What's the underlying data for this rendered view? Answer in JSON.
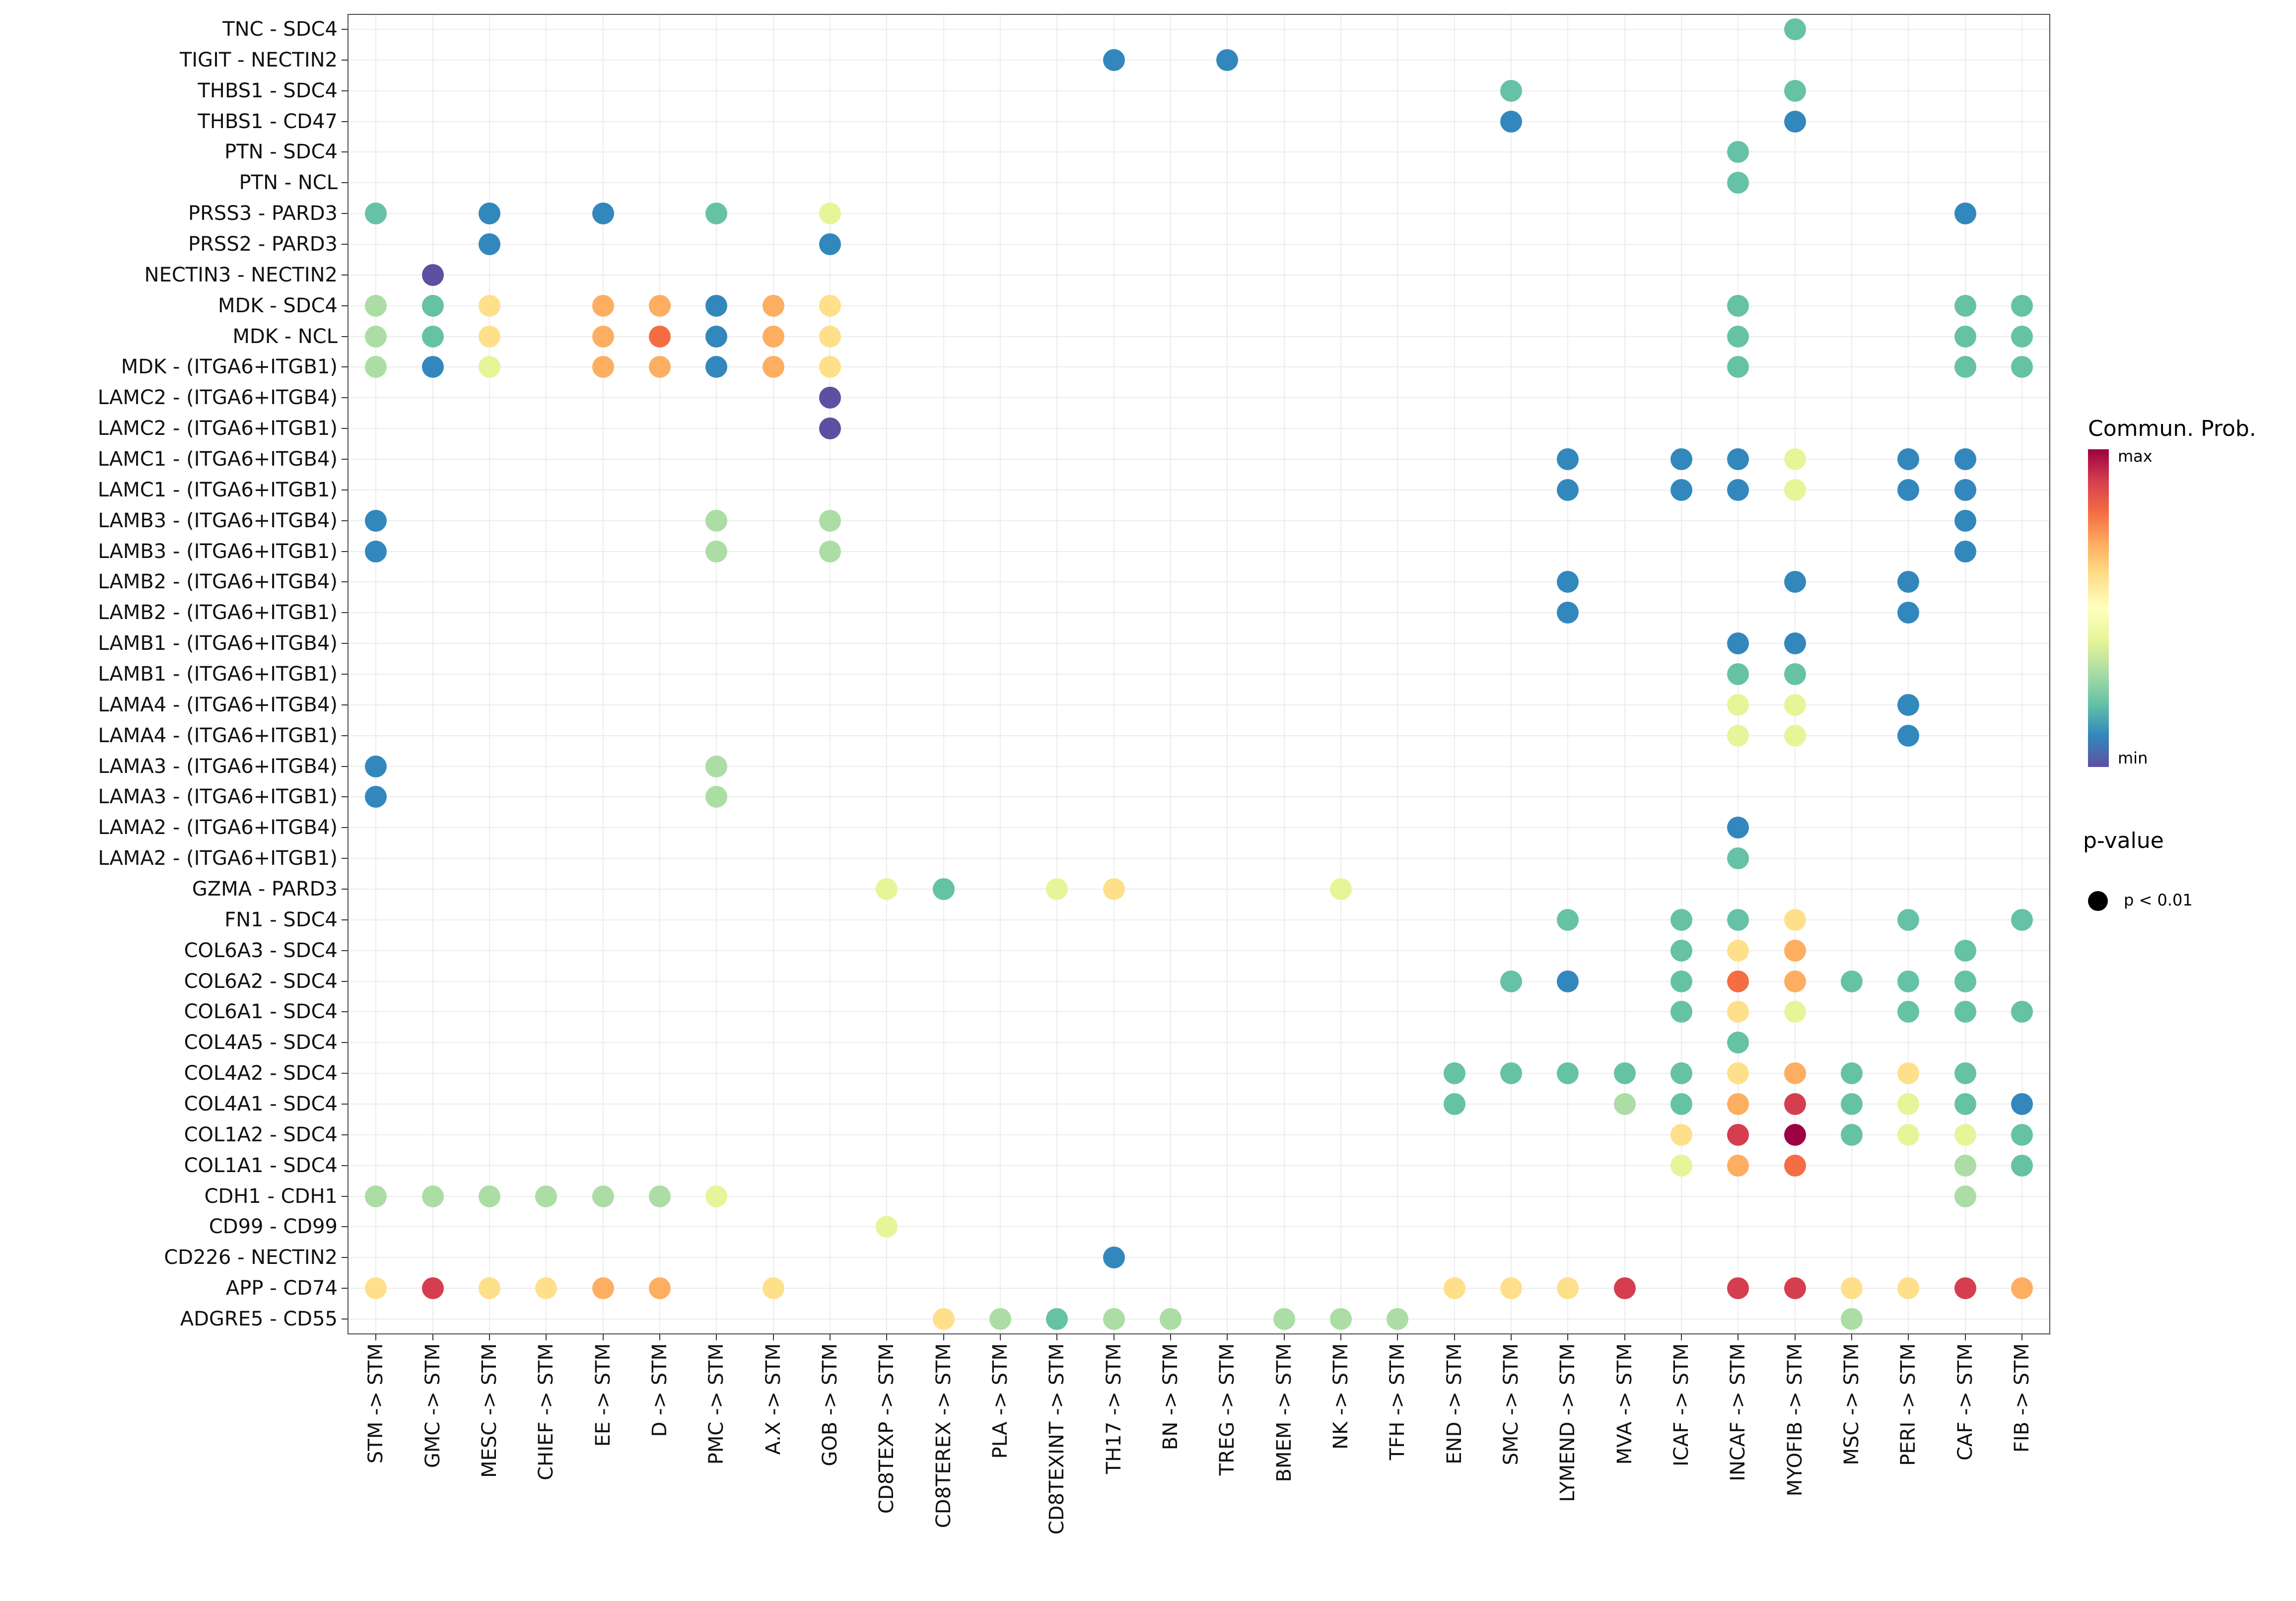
{
  "chart_data": {
    "type": "scatter",
    "subtype": "ligand-receptor-bubble-plot",
    "title": "",
    "x_axis": {
      "labels": [
        "STM -> STM",
        "GMC -> STM",
        "MESC -> STM",
        "CHIEF -> STM",
        "EE -> STM",
        "D -> STM",
        "PMC -> STM",
        "A.X -> STM",
        "GOB -> STM",
        "CD8TEXP -> STM",
        "CD8TEREX -> STM",
        "PLA -> STM",
        "CD8TEXINT -> STM",
        "TH17 -> STM",
        "BN -> STM",
        "TREG -> STM",
        "BMEM -> STM",
        "NK -> STM",
        "TFH -> STM",
        "END -> STM",
        "SMC -> STM",
        "LYMEND -> STM",
        "MVA -> STM",
        "ICAF -> STM",
        "INCAF -> STM",
        "MYOFIB -> STM",
        "MSC -> STM",
        "PERI -> STM",
        "CAF -> STM",
        "FIB -> STM"
      ]
    },
    "y_axis": {
      "labels": [
        "TNC - SDC4",
        "TIGIT - NECTIN2",
        "THBS1 - SDC4",
        "THBS1 - CD47",
        "PTN - SDC4",
        "PTN - NCL",
        "PRSS3 - PARD3",
        "PRSS2 - PARD3",
        "NECTIN3 - NECTIN2",
        "MDK - SDC4",
        "MDK - NCL",
        "MDK - (ITGA6+ITGB1)",
        "LAMC2 - (ITGA6+ITGB4)",
        "LAMC2 - (ITGA6+ITGB1)",
        "LAMC1 - (ITGA6+ITGB4)",
        "LAMC1 - (ITGA6+ITGB1)",
        "LAMB3 - (ITGA6+ITGB4)",
        "LAMB3 - (ITGA6+ITGB1)",
        "LAMB2 - (ITGA6+ITGB4)",
        "LAMB2 - (ITGA6+ITGB1)",
        "LAMB1 - (ITGA6+ITGB4)",
        "LAMB1 - (ITGA6+ITGB1)",
        "LAMA4 - (ITGA6+ITGB4)",
        "LAMA4 - (ITGA6+ITGB1)",
        "LAMA3 - (ITGA6+ITGB4)",
        "LAMA3 - (ITGA6+ITGB1)",
        "LAMA2 - (ITGA6+ITGB4)",
        "LAMA2 - (ITGA6+ITGB1)",
        "GZMA - PARD3",
        "FN1 - SDC4",
        "COL6A3 - SDC4",
        "COL6A2 - SDC4",
        "COL6A1 - SDC4",
        "COL4A5 - SDC4",
        "COL4A2 - SDC4",
        "COL4A1 - SDC4",
        "COL1A2 - SDC4",
        "COL1A1 - SDC4",
        "CDH1 - CDH1",
        "CD99 - CD99",
        "CD226 - NECTIN2",
        "APP - CD74",
        "ADGRE5 - CD55"
      ]
    },
    "color_scale": {
      "name": "Commun. Prob.",
      "max_label": "max",
      "min_label": "min",
      "stops": [
        "#9e0142",
        "#d53e4f",
        "#f46d43",
        "#fdae61",
        "#fee08b",
        "#ffffbf",
        "#e6f598",
        "#abdda4",
        "#66c2a5",
        "#3288bd",
        "#5e4fa2"
      ]
    },
    "p_value_legend": {
      "title": "p-value",
      "label": "p < 0.01"
    },
    "palette": {
      "P": "#5e4fa2",
      "B": "#3288bd",
      "T": "#66c2a5",
      "G": "#abdda4",
      "YG": "#e6f598",
      "Y": "#fee08b",
      "O": "#fdae61",
      "OR": "#f46d43",
      "R": "#d53e4f",
      "DR": "#9e0142"
    },
    "palette_order_low_to_high": [
      "P",
      "B",
      "T",
      "G",
      "YG",
      "Y",
      "O",
      "OR",
      "R",
      "DR"
    ],
    "dots": [
      {
        "r": 0,
        "c": 25,
        "v": "T"
      },
      {
        "r": 1,
        "c": 13,
        "v": "B"
      },
      {
        "r": 1,
        "c": 15,
        "v": "B"
      },
      {
        "r": 2,
        "c": 20,
        "v": "T"
      },
      {
        "r": 2,
        "c": 25,
        "v": "T"
      },
      {
        "r": 3,
        "c": 20,
        "v": "B"
      },
      {
        "r": 3,
        "c": 25,
        "v": "B"
      },
      {
        "r": 4,
        "c": 24,
        "v": "T"
      },
      {
        "r": 5,
        "c": 24,
        "v": "T"
      },
      {
        "r": 6,
        "c": 0,
        "v": "T"
      },
      {
        "r": 6,
        "c": 2,
        "v": "B"
      },
      {
        "r": 6,
        "c": 4,
        "v": "B"
      },
      {
        "r": 6,
        "c": 6,
        "v": "T"
      },
      {
        "r": 6,
        "c": 8,
        "v": "YG"
      },
      {
        "r": 6,
        "c": 28,
        "v": "B"
      },
      {
        "r": 7,
        "c": 2,
        "v": "B"
      },
      {
        "r": 7,
        "c": 8,
        "v": "B"
      },
      {
        "r": 8,
        "c": 1,
        "v": "P"
      },
      {
        "r": 9,
        "c": 0,
        "v": "G"
      },
      {
        "r": 9,
        "c": 1,
        "v": "T"
      },
      {
        "r": 9,
        "c": 2,
        "v": "Y"
      },
      {
        "r": 9,
        "c": 4,
        "v": "O"
      },
      {
        "r": 9,
        "c": 5,
        "v": "O"
      },
      {
        "r": 9,
        "c": 6,
        "v": "B"
      },
      {
        "r": 9,
        "c": 7,
        "v": "O"
      },
      {
        "r": 9,
        "c": 8,
        "v": "Y"
      },
      {
        "r": 9,
        "c": 24,
        "v": "T"
      },
      {
        "r": 9,
        "c": 28,
        "v": "T"
      },
      {
        "r": 9,
        "c": 29,
        "v": "T"
      },
      {
        "r": 10,
        "c": 0,
        "v": "G"
      },
      {
        "r": 10,
        "c": 1,
        "v": "T"
      },
      {
        "r": 10,
        "c": 2,
        "v": "Y"
      },
      {
        "r": 10,
        "c": 4,
        "v": "O"
      },
      {
        "r": 10,
        "c": 5,
        "v": "OR"
      },
      {
        "r": 10,
        "c": 6,
        "v": "B"
      },
      {
        "r": 10,
        "c": 7,
        "v": "O"
      },
      {
        "r": 10,
        "c": 8,
        "v": "Y"
      },
      {
        "r": 10,
        "c": 24,
        "v": "T"
      },
      {
        "r": 10,
        "c": 28,
        "v": "T"
      },
      {
        "r": 10,
        "c": 29,
        "v": "T"
      },
      {
        "r": 11,
        "c": 0,
        "v": "G"
      },
      {
        "r": 11,
        "c": 1,
        "v": "B"
      },
      {
        "r": 11,
        "c": 2,
        "v": "YG"
      },
      {
        "r": 11,
        "c": 4,
        "v": "O"
      },
      {
        "r": 11,
        "c": 5,
        "v": "O"
      },
      {
        "r": 11,
        "c": 6,
        "v": "B"
      },
      {
        "r": 11,
        "c": 7,
        "v": "O"
      },
      {
        "r": 11,
        "c": 8,
        "v": "Y"
      },
      {
        "r": 11,
        "c": 24,
        "v": "T"
      },
      {
        "r": 11,
        "c": 28,
        "v": "T"
      },
      {
        "r": 11,
        "c": 29,
        "v": "T"
      },
      {
        "r": 12,
        "c": 8,
        "v": "P"
      },
      {
        "r": 13,
        "c": 8,
        "v": "P"
      },
      {
        "r": 14,
        "c": 21,
        "v": "B"
      },
      {
        "r": 14,
        "c": 23,
        "v": "B"
      },
      {
        "r": 14,
        "c": 24,
        "v": "B"
      },
      {
        "r": 14,
        "c": 25,
        "v": "YG"
      },
      {
        "r": 14,
        "c": 27,
        "v": "B"
      },
      {
        "r": 14,
        "c": 28,
        "v": "B"
      },
      {
        "r": 15,
        "c": 21,
        "v": "B"
      },
      {
        "r": 15,
        "c": 23,
        "v": "B"
      },
      {
        "r": 15,
        "c": 24,
        "v": "B"
      },
      {
        "r": 15,
        "c": 25,
        "v": "YG"
      },
      {
        "r": 15,
        "c": 27,
        "v": "B"
      },
      {
        "r": 15,
        "c": 28,
        "v": "B"
      },
      {
        "r": 16,
        "c": 0,
        "v": "B"
      },
      {
        "r": 16,
        "c": 6,
        "v": "G"
      },
      {
        "r": 16,
        "c": 8,
        "v": "G"
      },
      {
        "r": 16,
        "c": 28,
        "v": "B"
      },
      {
        "r": 17,
        "c": 0,
        "v": "B"
      },
      {
        "r": 17,
        "c": 6,
        "v": "G"
      },
      {
        "r": 17,
        "c": 8,
        "v": "G"
      },
      {
        "r": 17,
        "c": 28,
        "v": "B"
      },
      {
        "r": 18,
        "c": 21,
        "v": "B"
      },
      {
        "r": 18,
        "c": 25,
        "v": "B"
      },
      {
        "r": 18,
        "c": 27,
        "v": "B"
      },
      {
        "r": 19,
        "c": 21,
        "v": "B"
      },
      {
        "r": 19,
        "c": 27,
        "v": "B"
      },
      {
        "r": 20,
        "c": 24,
        "v": "B"
      },
      {
        "r": 20,
        "c": 25,
        "v": "B"
      },
      {
        "r": 21,
        "c": 24,
        "v": "T"
      },
      {
        "r": 21,
        "c": 25,
        "v": "T"
      },
      {
        "r": 22,
        "c": 24,
        "v": "YG"
      },
      {
        "r": 22,
        "c": 25,
        "v": "YG"
      },
      {
        "r": 22,
        "c": 27,
        "v": "B"
      },
      {
        "r": 23,
        "c": 24,
        "v": "YG"
      },
      {
        "r": 23,
        "c": 25,
        "v": "YG"
      },
      {
        "r": 23,
        "c": 27,
        "v": "B"
      },
      {
        "r": 24,
        "c": 0,
        "v": "B"
      },
      {
        "r": 24,
        "c": 6,
        "v": "G"
      },
      {
        "r": 25,
        "c": 0,
        "v": "B"
      },
      {
        "r": 25,
        "c": 6,
        "v": "G"
      },
      {
        "r": 26,
        "c": 24,
        "v": "B"
      },
      {
        "r": 27,
        "c": 24,
        "v": "T"
      },
      {
        "r": 28,
        "c": 9,
        "v": "YG"
      },
      {
        "r": 28,
        "c": 10,
        "v": "T"
      },
      {
        "r": 28,
        "c": 12,
        "v": "YG"
      },
      {
        "r": 28,
        "c": 13,
        "v": "Y"
      },
      {
        "r": 28,
        "c": 17,
        "v": "YG"
      },
      {
        "r": 29,
        "c": 21,
        "v": "T"
      },
      {
        "r": 29,
        "c": 23,
        "v": "T"
      },
      {
        "r": 29,
        "c": 24,
        "v": "T"
      },
      {
        "r": 29,
        "c": 25,
        "v": "Y"
      },
      {
        "r": 29,
        "c": 27,
        "v": "T"
      },
      {
        "r": 29,
        "c": 29,
        "v": "T"
      },
      {
        "r": 30,
        "c": 23,
        "v": "T"
      },
      {
        "r": 30,
        "c": 24,
        "v": "Y"
      },
      {
        "r": 30,
        "c": 25,
        "v": "O"
      },
      {
        "r": 30,
        "c": 28,
        "v": "T"
      },
      {
        "r": 31,
        "c": 20,
        "v": "T"
      },
      {
        "r": 31,
        "c": 21,
        "v": "B"
      },
      {
        "r": 31,
        "c": 23,
        "v": "T"
      },
      {
        "r": 31,
        "c": 24,
        "v": "OR"
      },
      {
        "r": 31,
        "c": 25,
        "v": "O"
      },
      {
        "r": 31,
        "c": 26,
        "v": "T"
      },
      {
        "r": 31,
        "c": 27,
        "v": "T"
      },
      {
        "r": 31,
        "c": 28,
        "v": "T"
      },
      {
        "r": 32,
        "c": 23,
        "v": "T"
      },
      {
        "r": 32,
        "c": 24,
        "v": "Y"
      },
      {
        "r": 32,
        "c": 25,
        "v": "YG"
      },
      {
        "r": 32,
        "c": 27,
        "v": "T"
      },
      {
        "r": 32,
        "c": 28,
        "v": "T"
      },
      {
        "r": 32,
        "c": 29,
        "v": "T"
      },
      {
        "r": 33,
        "c": 24,
        "v": "T"
      },
      {
        "r": 34,
        "c": 19,
        "v": "T"
      },
      {
        "r": 34,
        "c": 20,
        "v": "T"
      },
      {
        "r": 34,
        "c": 21,
        "v": "T"
      },
      {
        "r": 34,
        "c": 22,
        "v": "T"
      },
      {
        "r": 34,
        "c": 23,
        "v": "T"
      },
      {
        "r": 34,
        "c": 24,
        "v": "Y"
      },
      {
        "r": 34,
        "c": 25,
        "v": "O"
      },
      {
        "r": 34,
        "c": 26,
        "v": "T"
      },
      {
        "r": 34,
        "c": 27,
        "v": "Y"
      },
      {
        "r": 34,
        "c": 28,
        "v": "T"
      },
      {
        "r": 35,
        "c": 19,
        "v": "T"
      },
      {
        "r": 35,
        "c": 22,
        "v": "G"
      },
      {
        "r": 35,
        "c": 23,
        "v": "T"
      },
      {
        "r": 35,
        "c": 24,
        "v": "O"
      },
      {
        "r": 35,
        "c": 25,
        "v": "R"
      },
      {
        "r": 35,
        "c": 26,
        "v": "T"
      },
      {
        "r": 35,
        "c": 27,
        "v": "YG"
      },
      {
        "r": 35,
        "c": 28,
        "v": "T"
      },
      {
        "r": 35,
        "c": 29,
        "v": "B"
      },
      {
        "r": 36,
        "c": 23,
        "v": "Y"
      },
      {
        "r": 36,
        "c": 24,
        "v": "R"
      },
      {
        "r": 36,
        "c": 25,
        "v": "DR"
      },
      {
        "r": 36,
        "c": 26,
        "v": "T"
      },
      {
        "r": 36,
        "c": 27,
        "v": "YG"
      },
      {
        "r": 36,
        "c": 28,
        "v": "YG"
      },
      {
        "r": 36,
        "c": 29,
        "v": "T"
      },
      {
        "r": 37,
        "c": 23,
        "v": "YG"
      },
      {
        "r": 37,
        "c": 24,
        "v": "O"
      },
      {
        "r": 37,
        "c": 25,
        "v": "OR"
      },
      {
        "r": 37,
        "c": 28,
        "v": "G"
      },
      {
        "r": 37,
        "c": 29,
        "v": "T"
      },
      {
        "r": 38,
        "c": 0,
        "v": "G"
      },
      {
        "r": 38,
        "c": 1,
        "v": "G"
      },
      {
        "r": 38,
        "c": 2,
        "v": "G"
      },
      {
        "r": 38,
        "c": 3,
        "v": "G"
      },
      {
        "r": 38,
        "c": 4,
        "v": "G"
      },
      {
        "r": 38,
        "c": 5,
        "v": "G"
      },
      {
        "r": 38,
        "c": 6,
        "v": "YG"
      },
      {
        "r": 38,
        "c": 28,
        "v": "G"
      },
      {
        "r": 39,
        "c": 9,
        "v": "YG"
      },
      {
        "r": 40,
        "c": 13,
        "v": "B"
      },
      {
        "r": 41,
        "c": 0,
        "v": "Y"
      },
      {
        "r": 41,
        "c": 1,
        "v": "R"
      },
      {
        "r": 41,
        "c": 2,
        "v": "Y"
      },
      {
        "r": 41,
        "c": 3,
        "v": "Y"
      },
      {
        "r": 41,
        "c": 4,
        "v": "O"
      },
      {
        "r": 41,
        "c": 5,
        "v": "O"
      },
      {
        "r": 41,
        "c": 7,
        "v": "Y"
      },
      {
        "r": 41,
        "c": 19,
        "v": "Y"
      },
      {
        "r": 41,
        "c": 20,
        "v": "Y"
      },
      {
        "r": 41,
        "c": 21,
        "v": "Y"
      },
      {
        "r": 41,
        "c": 22,
        "v": "R"
      },
      {
        "r": 41,
        "c": 24,
        "v": "R"
      },
      {
        "r": 41,
        "c": 25,
        "v": "R"
      },
      {
        "r": 41,
        "c": 26,
        "v": "Y"
      },
      {
        "r": 41,
        "c": 27,
        "v": "Y"
      },
      {
        "r": 41,
        "c": 28,
        "v": "R"
      },
      {
        "r": 41,
        "c": 29,
        "v": "O"
      },
      {
        "r": 42,
        "c": 10,
        "v": "Y"
      },
      {
        "r": 42,
        "c": 11,
        "v": "G"
      },
      {
        "r": 42,
        "c": 12,
        "v": "T"
      },
      {
        "r": 42,
        "c": 13,
        "v": "G"
      },
      {
        "r": 42,
        "c": 14,
        "v": "G"
      },
      {
        "r": 42,
        "c": 16,
        "v": "G"
      },
      {
        "r": 42,
        "c": 17,
        "v": "G"
      },
      {
        "r": 42,
        "c": 18,
        "v": "G"
      },
      {
        "r": 42,
        "c": 26,
        "v": "G"
      }
    ]
  }
}
